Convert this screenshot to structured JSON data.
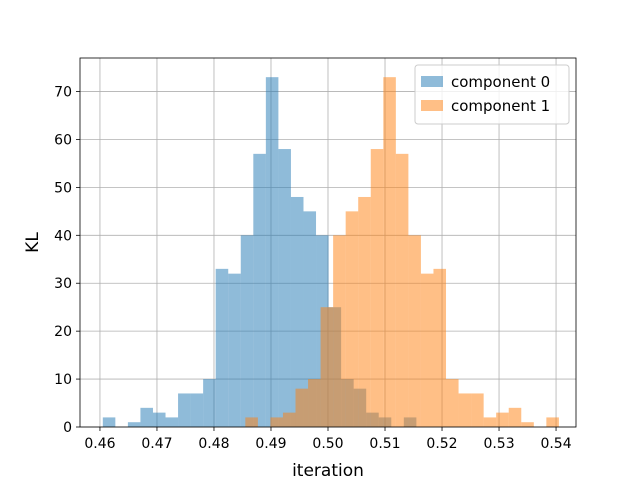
{
  "chart_data": {
    "type": "bar",
    "title": "",
    "xlabel": "iteration",
    "ylabel": "KL",
    "xlim": [
      0.4565,
      0.5435
    ],
    "ylim": [
      0,
      77
    ],
    "xticks": [
      0.46,
      0.47,
      0.48,
      0.49,
      0.5,
      0.51,
      0.52,
      0.53,
      0.54
    ],
    "xtick_labels": [
      "0.46",
      "0.47",
      "0.48",
      "0.49",
      "0.50",
      "0.51",
      "0.52",
      "0.53",
      "0.54"
    ],
    "yticks": [
      0,
      10,
      20,
      30,
      40,
      50,
      60,
      70
    ],
    "ytick_labels": [
      "0",
      "10",
      "20",
      "30",
      "40",
      "50",
      "60",
      "70"
    ],
    "grid": true,
    "legend_position": "top-right",
    "series": [
      {
        "name": "component 0",
        "color": "#1f77b4",
        "alpha": 0.5,
        "bins": [
          [
            0.4605,
            0.4627,
            2
          ],
          [
            0.4649,
            0.4671,
            1
          ],
          [
            0.4671,
            0.4693,
            4
          ],
          [
            0.4693,
            0.4715,
            3
          ],
          [
            0.4715,
            0.4737,
            2
          ],
          [
            0.4737,
            0.4759,
            7
          ],
          [
            0.4759,
            0.4781,
            7
          ],
          [
            0.4781,
            0.4803,
            10
          ],
          [
            0.4803,
            0.4825,
            33
          ],
          [
            0.4825,
            0.4847,
            32
          ],
          [
            0.4847,
            0.4869,
            40
          ],
          [
            0.4869,
            0.4891,
            57
          ],
          [
            0.4891,
            0.4913,
            73
          ],
          [
            0.4913,
            0.4935,
            58
          ],
          [
            0.4935,
            0.4957,
            48
          ],
          [
            0.4957,
            0.4979,
            45
          ],
          [
            0.4979,
            0.5001,
            40
          ],
          [
            0.5001,
            0.5023,
            25
          ],
          [
            0.5023,
            0.5045,
            10
          ],
          [
            0.5045,
            0.5067,
            8
          ],
          [
            0.5067,
            0.5089,
            3
          ],
          [
            0.5089,
            0.5111,
            2
          ],
          [
            0.5133,
            0.5155,
            2
          ]
        ]
      },
      {
        "name": "component 1",
        "color": "#ff7f0e",
        "alpha": 0.5,
        "bins": [
          [
            0.4855,
            0.4877,
            2
          ],
          [
            0.4899,
            0.4921,
            2
          ],
          [
            0.4921,
            0.4943,
            3
          ],
          [
            0.4943,
            0.4965,
            8
          ],
          [
            0.4965,
            0.4987,
            10
          ],
          [
            0.4987,
            0.5009,
            25
          ],
          [
            0.5009,
            0.5031,
            40
          ],
          [
            0.5031,
            0.5053,
            45
          ],
          [
            0.5053,
            0.5075,
            48
          ],
          [
            0.5075,
            0.5097,
            58
          ],
          [
            0.5097,
            0.5119,
            73
          ],
          [
            0.5119,
            0.5141,
            57
          ],
          [
            0.5141,
            0.5163,
            40
          ],
          [
            0.5163,
            0.5185,
            32
          ],
          [
            0.5185,
            0.5207,
            33
          ],
          [
            0.5207,
            0.5229,
            10
          ],
          [
            0.5229,
            0.5251,
            7
          ],
          [
            0.5251,
            0.5273,
            7
          ],
          [
            0.5273,
            0.5295,
            2
          ],
          [
            0.5295,
            0.5317,
            3
          ],
          [
            0.5317,
            0.5339,
            4
          ],
          [
            0.5339,
            0.5361,
            1
          ],
          [
            0.5383,
            0.5405,
            2
          ]
        ]
      }
    ]
  }
}
